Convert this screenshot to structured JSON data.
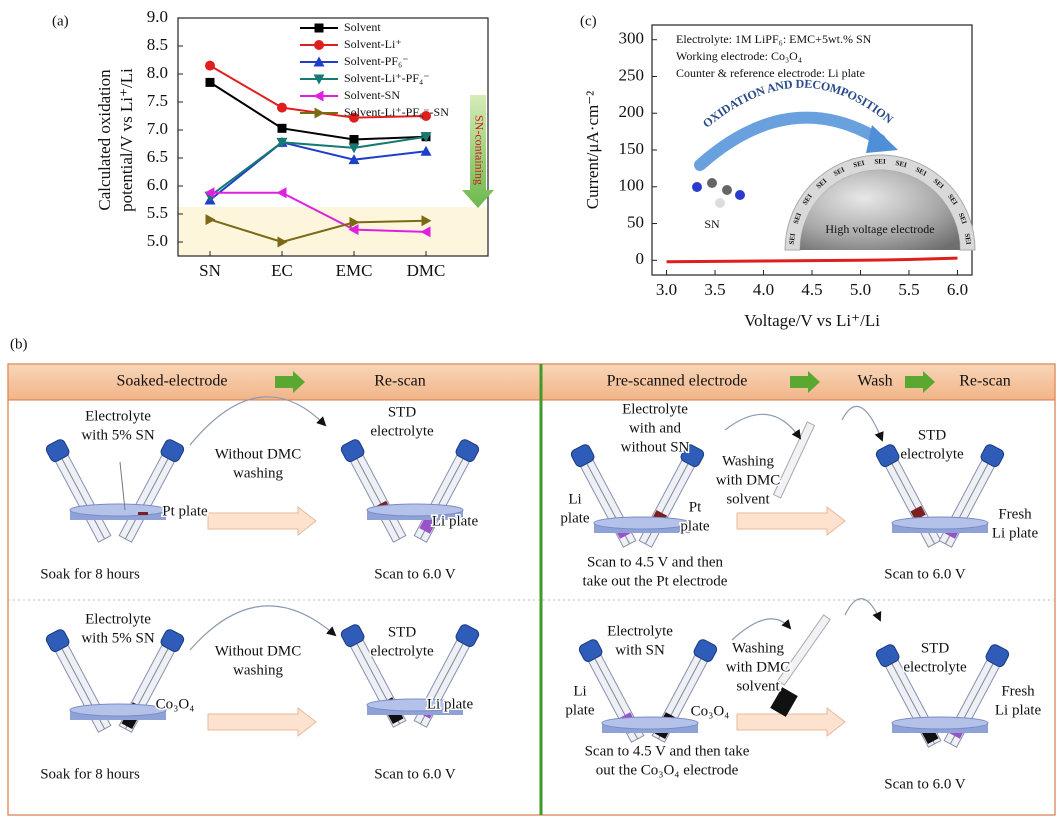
{
  "chart_data": [
    {
      "type": "line",
      "panel_label": "(a)",
      "y_label": [
        "Calculated oxidation",
        "potential/V vs Li⁺/Li"
      ],
      "categories": [
        "SN",
        "EC",
        "EMC",
        "DMC"
      ],
      "ylim": [
        4.75,
        9.0
      ],
      "yticks": [
        {
          "value": 5,
          "label": "5.0"
        },
        5.5,
        {
          "value": 6,
          "label": "6.0"
        },
        6.5,
        {
          "value": 7,
          "label": "7.0"
        },
        7.5,
        {
          "value": 8,
          "label": "8.0"
        },
        8.5,
        {
          "value": 9,
          "label": "9.0"
        }
      ],
      "legend": "upper right",
      "annotation": "SN-containing",
      "series": [
        {
          "name": "Solvent",
          "color": "#000000",
          "marker": "square",
          "values": [
            7.85,
            7.03,
            6.83,
            6.88
          ]
        },
        {
          "name": "Solvent-Li⁺",
          "color": "#e01e1e",
          "marker": "circle",
          "values": [
            8.15,
            7.4,
            7.22,
            7.25
          ]
        },
        {
          "name": "Solvent-PF₆⁻",
          "color": "#1f3fc8",
          "marker": "triangle-up",
          "values": [
            5.75,
            6.78,
            6.47,
            6.62
          ]
        },
        {
          "name": "Solvent-Li⁺-PF₄⁻",
          "color": "#167a72",
          "marker": "triangle-down",
          "values": [
            5.82,
            6.78,
            6.68,
            6.88
          ]
        },
        {
          "name": "Solvent-SN",
          "color": "#e020e0",
          "marker": "triangle-left",
          "values": [
            5.88,
            5.88,
            5.22,
            5.18
          ]
        },
        {
          "name": "Solvent-Li⁺-PF₆⁻-SN",
          "color": "#7a6a14",
          "marker": "triangle-right",
          "values": [
            5.4,
            5.0,
            5.35,
            5.38
          ]
        }
      ]
    },
    {
      "type": "line",
      "panel_label": "(c)",
      "y_label": "Current/μA·cm⁻²",
      "x_label": "Voltage/V vs Li⁺/Li",
      "x": [
        3.0,
        3.5,
        4.0,
        4.5,
        5.0,
        5.5,
        6.0
      ],
      "values": [
        -2,
        -1.5,
        -1,
        -0.5,
        0,
        1,
        3
      ],
      "color": "#e01e1e",
      "xlim": [
        2.85,
        6.15
      ],
      "xticks": [
        {
          "value": 3,
          "label": "3.0"
        },
        3.5,
        {
          "value": 4,
          "label": "4.0"
        },
        4.5,
        {
          "value": 5,
          "label": "5.0"
        },
        5.5,
        {
          "value": 6,
          "label": "6.0"
        }
      ],
      "ylim": [
        -20,
        320
      ],
      "yticks": [
        0,
        50,
        100,
        150,
        200,
        250,
        300
      ],
      "annotations": [
        "Electrolyte: 1M LiPF₆: EMC+5wt.% SN",
        "Working electrode: Co₃O₄",
        "Counter & reference electrode: Li plate"
      ],
      "arrow_text": "OXIDATION AND DECOMPOSITION",
      "electrode_label": "High voltage electrode",
      "molecule_label": "SN",
      "sei_label": "SEI"
    }
  ],
  "panel_b": {
    "label": "(b)",
    "header_left": [
      "Soaked-electrode",
      "Re-scan"
    ],
    "header_right": [
      "Pre-scanned electrode",
      "Wash",
      "Re-scan"
    ],
    "cells": [
      [
        [
          "Electrolyte",
          "with 5% SN"
        ],
        [
          "Without DMC",
          "washing"
        ],
        [
          "STD",
          "electrolyte"
        ],
        [
          "Pt plate"
        ],
        [
          "Li plate"
        ],
        [
          "Soak for 8 hours"
        ],
        [
          "Scan to 6.0 V"
        ]
      ],
      [
        [
          "Electrolyte",
          "with and",
          "without SN"
        ],
        [
          "Washing",
          "with DMC",
          "solvent"
        ],
        [
          "STD",
          "electrolyte"
        ],
        [
          "Li",
          "plate"
        ],
        [
          "Pt",
          "plate"
        ],
        [
          "Fresh",
          "Li plate"
        ],
        [
          "Scan to 4.5 V and then",
          "take out the Pt electrode"
        ],
        [
          "Scan to 6.0 V"
        ]
      ],
      [
        [
          "Electrolyte",
          "with 5% SN"
        ],
        [
          "Without DMC",
          "washing"
        ],
        [
          "STD",
          "electrolyte"
        ],
        [
          "Co₃O₄"
        ],
        [
          "Li plate"
        ],
        [
          "Soak for 8 hours"
        ],
        [
          "Scan to 6.0 V"
        ]
      ],
      [
        [
          "Electrolyte",
          "with SN"
        ],
        [
          "Washing",
          "with DMC",
          "solvent"
        ],
        [
          "STD",
          "electrolyte"
        ],
        [
          "Li",
          "plate"
        ],
        [
          "Co₃O₄"
        ],
        [
          "Fresh",
          "Li plate"
        ],
        [
          "Scan to 4.5 V and then take",
          "out the Co₃O₄ electrode"
        ],
        [
          "Scan to 6.0 V"
        ]
      ]
    ]
  }
}
